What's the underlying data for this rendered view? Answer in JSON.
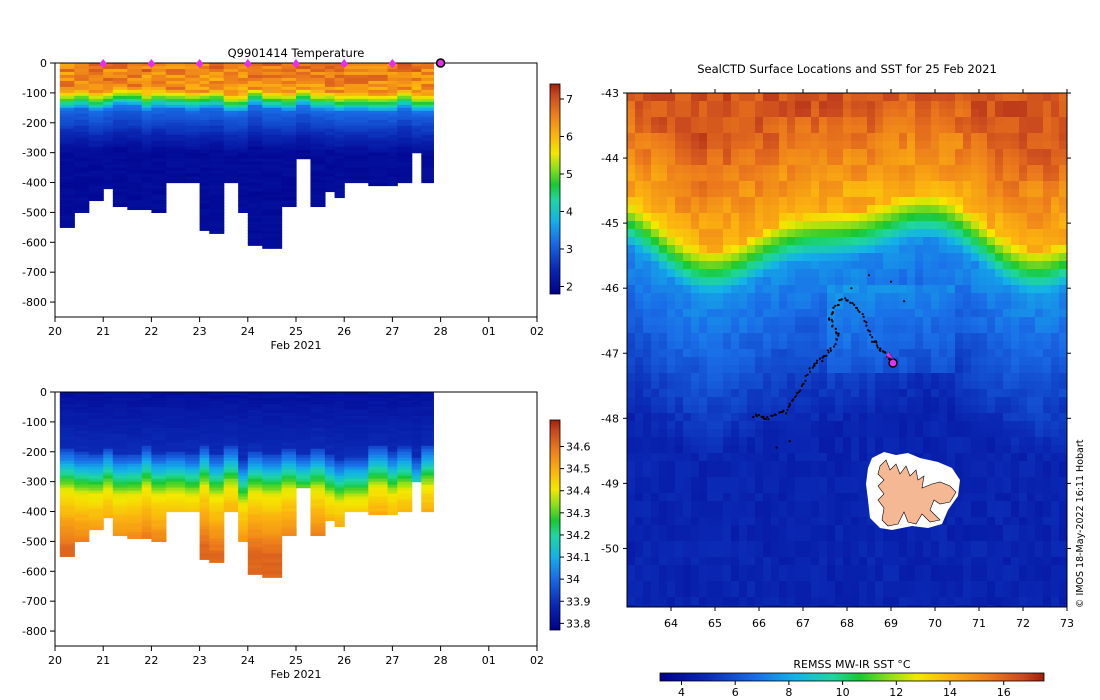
{
  "credit": "© IMOS 18-May-2022 16:11 Hobart",
  "chart_data": [
    {
      "type": "heatmap",
      "title": "Q9901414  Temperature",
      "xlabel": "Feb 2021",
      "ylabel": "",
      "x_ticks": [
        "20",
        "21",
        "22",
        "23",
        "24",
        "25",
        "26",
        "27",
        "28",
        "01",
        "02"
      ],
      "x_range_days": [
        20,
        30
      ],
      "y_ticks": [
        "0",
        "-100",
        "-200",
        "-300",
        "-400",
        "-500",
        "-600",
        "-700",
        "-800"
      ],
      "ylim": [
        -850,
        0
      ],
      "colorbar_ticks": [
        "2",
        "3",
        "4",
        "5",
        "6",
        "7"
      ],
      "colorbar_range": [
        1.8,
        7.4
      ],
      "profile_times_days": [
        20.1,
        20.4,
        20.7,
        21.0,
        21.2,
        21.5,
        21.8,
        22.0,
        22.3,
        22.7,
        23.0,
        23.2,
        23.5,
        23.8,
        24.0,
        24.3,
        24.7,
        25.0,
        25.3,
        25.6,
        25.8,
        26.0,
        26.5,
        26.9,
        27.1,
        27.4,
        27.6
      ],
      "profile_max_depth_m": [
        550,
        500,
        460,
        420,
        480,
        485,
        490,
        495,
        400,
        400,
        555,
        570,
        400,
        500,
        610,
        620,
        480,
        315,
        480,
        430,
        450,
        400,
        405,
        410,
        395,
        300,
        400
      ],
      "markers_days": [
        21,
        22,
        23,
        24,
        25,
        26,
        27
      ],
      "current_position_day": 28
    },
    {
      "type": "heatmap",
      "title": "",
      "xlabel": "Feb 2021",
      "ylabel": "",
      "x_ticks": [
        "20",
        "21",
        "22",
        "23",
        "24",
        "25",
        "26",
        "27",
        "28",
        "01",
        "02"
      ],
      "x_range_days": [
        20,
        30
      ],
      "y_ticks": [
        "0",
        "-100",
        "-200",
        "-300",
        "-400",
        "-500",
        "-600",
        "-700",
        "-800"
      ],
      "ylim": [
        -850,
        0
      ],
      "colorbar_ticks": [
        "33.8",
        "33.9",
        "34",
        "34.1",
        "34.2",
        "34.3",
        "34.4",
        "34.5",
        "34.6"
      ],
      "colorbar_range": [
        33.77,
        34.72
      ]
    },
    {
      "type": "heatmap",
      "title": "SealCTD Surface Locations and SST for 25 Feb 2021",
      "x_ticks": [
        "64",
        "65",
        "66",
        "67",
        "68",
        "69",
        "70",
        "71",
        "72",
        "73"
      ],
      "xlim": [
        63,
        73
      ],
      "y_ticks": [
        "-43",
        "-44",
        "-45",
        "-46",
        "-47",
        "-48",
        "-49",
        "-50"
      ],
      "ylim": [
        -50.9,
        -43
      ],
      "colorbar_label": "REMSS MW-IR SST °C",
      "colorbar_ticks": [
        "4",
        "6",
        "8",
        "10",
        "12",
        "14",
        "16"
      ],
      "colorbar_range": [
        3.2,
        17.5
      ],
      "track_end_lonlat": [
        69.05,
        -47.18
      ],
      "island": "Kerguelen"
    }
  ]
}
